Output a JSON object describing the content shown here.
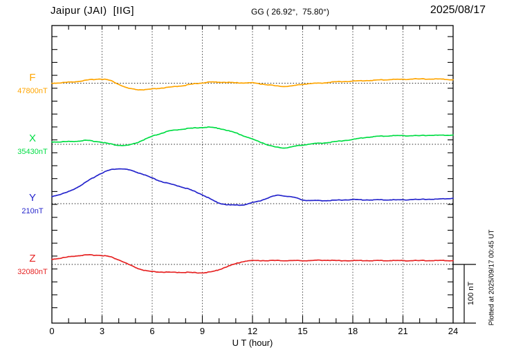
{
  "header": {
    "station": "Jaipur (JAI)  [IIG]",
    "coordinates": "GG ( 26.92°,  75.80°)",
    "date": "2025/08/17"
  },
  "scale_bar_label": "100 nT",
  "plotted_note": "Plotted at 2025/09/17 00:45 UT",
  "chart_data": {
    "type": "line",
    "title": "Magnetogram Jaipur (JAI) [IIG] 2025/08/17",
    "xlabel": "U T (hour)",
    "ylabel": "",
    "x_range": [
      0,
      24
    ],
    "x_major_ticks": [
      0,
      3,
      6,
      9,
      12,
      15,
      18,
      21,
      24
    ],
    "x_minor_step_hours": 1,
    "grid": "dotted vertical lines every 3 h; dotted horizontal baseline per trace",
    "legend_position": "left margin trace labels",
    "amplitude_scale": "100 nT reference bar at lower right",
    "x_start_hour": 0,
    "x_step_hours": 0.5,
    "series": [
      {
        "name": "F",
        "base_label": "47800nT",
        "base_value_nT": 47800,
        "color": "#FFA500",
        "values_delta_nT": [
          0,
          0.6,
          1.8,
          2.9,
          4.7,
          6.5,
          7.1,
          4.5,
          -2,
          -8,
          -10.6,
          -11.2,
          -10,
          -8.5,
          -7.1,
          -5.3,
          -3.5,
          -1.2,
          0.6,
          1.8,
          1.8,
          1.4,
          0.6,
          0.6,
          0.6,
          -1.2,
          -2.9,
          -5,
          -5.3,
          -4.1,
          -1.8,
          -0.6,
          0,
          1.2,
          2.4,
          2.9,
          3.5,
          4.1,
          4.7,
          5.3,
          5.9,
          6.5,
          6.5,
          7.1,
          7.1,
          7.1,
          7.1,
          6.5,
          5.9
        ]
      },
      {
        "name": "X",
        "base_label": "35430nT",
        "base_value_nT": 35430,
        "color": "#00DD44",
        "values_delta_nT": [
          4.1,
          4.1,
          4.7,
          5.3,
          6.5,
          5.3,
          3.5,
          0.6,
          -1.8,
          -1.8,
          1.8,
          7.6,
          13.5,
          18.2,
          22.4,
          24.7,
          26.5,
          27.6,
          28.8,
          28.8,
          27.1,
          23.5,
          19.4,
          14.1,
          8.8,
          3.5,
          -1.8,
          -5.3,
          -5.9,
          -3.5,
          -1.2,
          0.6,
          1.8,
          2.9,
          4.7,
          6.5,
          8.2,
          10.6,
          12.4,
          13.5,
          14.1,
          14.7,
          14.7,
          14.7,
          14.7,
          15.3,
          15.3,
          15.3,
          15.9
        ]
      },
      {
        "name": "Y",
        "base_label": "210nT",
        "base_value_nT": 210,
        "color": "#2424CC",
        "values_delta_nT": [
          12.4,
          15.9,
          20.6,
          27.6,
          35.9,
          44.7,
          52.4,
          57.6,
          59.4,
          58.2,
          54.1,
          49.4,
          43.5,
          38.2,
          34.1,
          30.6,
          26.5,
          21.2,
          15.3,
          7.6,
          1.2,
          -1.8,
          -2.4,
          -1.8,
          1.8,
          5.3,
          10.6,
          14.1,
          12.9,
          10.6,
          6.5,
          5.3,
          5.3,
          5.3,
          5.9,
          6.5,
          7.1,
          6.5,
          6.5,
          6.5,
          6.5,
          6.5,
          6.5,
          7.1,
          7.1,
          7.6,
          7.6,
          8.2,
          9.4
        ]
      },
      {
        "name": "Z",
        "base_label": "32080nT",
        "base_value_nT": 32080,
        "color": "#E62222",
        "values_delta_nT": [
          8.8,
          10.6,
          12.9,
          14.7,
          15.9,
          15.9,
          15.3,
          12.9,
          7.6,
          1.2,
          -5.3,
          -10,
          -12.4,
          -12.9,
          -13.5,
          -13.5,
          -13.5,
          -14.1,
          -14.1,
          -12.9,
          -8.8,
          -3.5,
          1.2,
          5.3,
          6.5,
          6.5,
          6.5,
          6.5,
          6.5,
          6.5,
          6.5,
          6.5,
          7.1,
          7.1,
          6.5,
          6.5,
          6.5,
          6.5,
          6.5,
          6.5,
          6.5,
          6.5,
          6.5,
          6.5,
          6.5,
          6.5,
          6.5,
          6.5,
          6.5
        ]
      }
    ]
  }
}
